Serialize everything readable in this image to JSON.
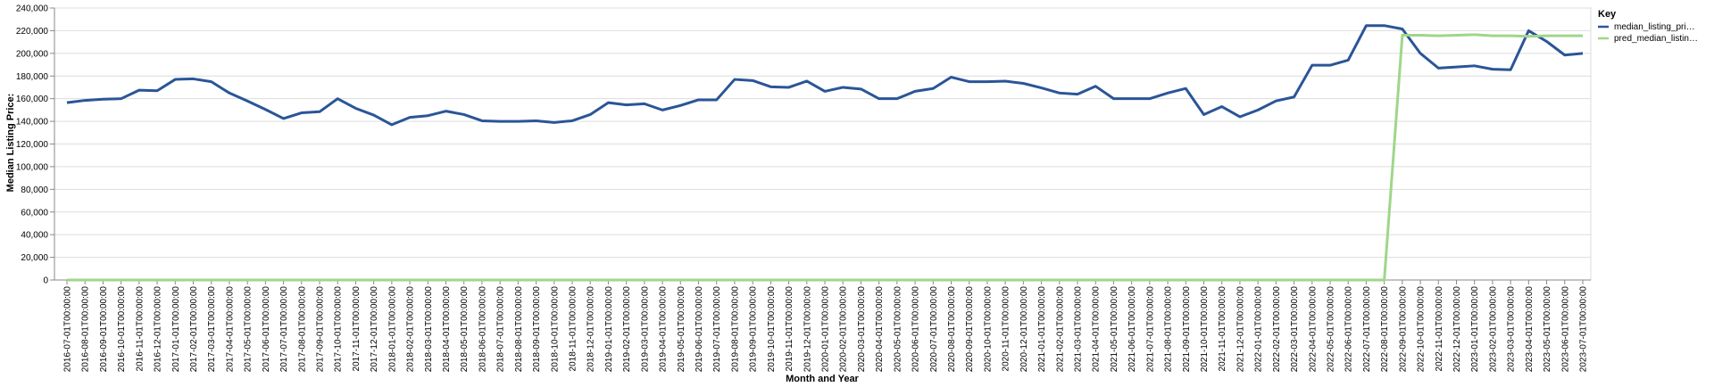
{
  "chart_data": {
    "type": "line",
    "xlabel": "Month and Year",
    "ylabel": "Median Listing Price:",
    "ylim": [
      0,
      240000
    ],
    "yticks": [
      "0",
      "20,000",
      "40,000",
      "60,000",
      "80,000",
      "100,000",
      "120,000",
      "140,000",
      "160,000",
      "180,000",
      "200,000",
      "220,000",
      "240,000"
    ],
    "grid": true,
    "legend": {
      "title": "Key",
      "placement": "right",
      "entries": [
        "median_listing_pri…",
        "pred_median_listin…"
      ]
    },
    "x": [
      "2016-07-01T00:00:00",
      "2016-08-01T00:00:00",
      "2016-09-01T00:00:00",
      "2016-10-01T00:00:00",
      "2016-11-01T00:00:00",
      "2016-12-01T00:00:00",
      "2017-01-01T00:00:00",
      "2017-02-01T00:00:00",
      "2017-03-01T00:00:00",
      "2017-04-01T00:00:00",
      "2017-05-01T00:00:00",
      "2017-06-01T00:00:00",
      "2017-07-01T00:00:00",
      "2017-08-01T00:00:00",
      "2017-09-01T00:00:00",
      "2017-10-01T00:00:00",
      "2017-11-01T00:00:00",
      "2017-12-01T00:00:00",
      "2018-01-01T00:00:00",
      "2018-02-01T00:00:00",
      "2018-03-01T00:00:00",
      "2018-04-01T00:00:00",
      "2018-05-01T00:00:00",
      "2018-06-01T00:00:00",
      "2018-07-01T00:00:00",
      "2018-08-01T00:00:00",
      "2018-09-01T00:00:00",
      "2018-10-01T00:00:00",
      "2018-11-01T00:00:00",
      "2018-12-01T00:00:00",
      "2019-01-01T00:00:00",
      "2019-02-01T00:00:00",
      "2019-03-01T00:00:00",
      "2019-04-01T00:00:00",
      "2019-05-01T00:00:00",
      "2019-06-01T00:00:00",
      "2019-07-01T00:00:00",
      "2019-08-01T00:00:00",
      "2019-09-01T00:00:00",
      "2019-10-01T00:00:00",
      "2019-11-01T00:00:00",
      "2019-12-01T00:00:00",
      "2020-01-01T00:00:00",
      "2020-02-01T00:00:00",
      "2020-03-01T00:00:00",
      "2020-04-01T00:00:00",
      "2020-05-01T00:00:00",
      "2020-06-01T00:00:00",
      "2020-07-01T00:00:00",
      "2020-08-01T00:00:00",
      "2020-09-01T00:00:00",
      "2020-10-01T00:00:00",
      "2020-11-01T00:00:00",
      "2020-12-01T00:00:00",
      "2021-01-01T00:00:00",
      "2021-02-01T00:00:00",
      "2021-03-01T00:00:00",
      "2021-04-01T00:00:00",
      "2021-05-01T00:00:00",
      "2021-06-01T00:00:00",
      "2021-07-01T00:00:00",
      "2021-08-01T00:00:00",
      "2021-09-01T00:00:00",
      "2021-10-01T00:00:00",
      "2021-11-01T00:00:00",
      "2021-12-01T00:00:00",
      "2022-01-01T00:00:00",
      "2022-02-01T00:00:00",
      "2022-03-01T00:00:00",
      "2022-04-01T00:00:00",
      "2022-05-01T00:00:00",
      "2022-06-01T00:00:00",
      "2022-07-01T00:00:00",
      "2022-08-01T00:00:00",
      "2022-09-01T00:00:00",
      "2022-10-01T00:00:00",
      "2022-11-01T00:00:00",
      "2022-12-01T00:00:00",
      "2023-01-01T00:00:00",
      "2023-02-01T00:00:00",
      "2023-03-01T00:00:00",
      "2023-04-01T00:00:00",
      "2023-05-01T00:00:00",
      "2023-06-01T00:00:00",
      "2023-07-01T00:00:00"
    ],
    "series": [
      {
        "name": "median_listing_pri…",
        "color": "#2a5597",
        "values": [
          156500,
          158500,
          159500,
          160000,
          167500,
          167000,
          177000,
          177500,
          175000,
          165000,
          158000,
          150500,
          142500,
          147500,
          148500,
          160000,
          151500,
          145500,
          137000,
          143500,
          145000,
          149000,
          146000,
          140500,
          140000,
          140000,
          140500,
          139000,
          140500,
          146000,
          156500,
          154500,
          155500,
          150000,
          154000,
          159000,
          159000,
          177000,
          176000,
          170500,
          170000,
          175500,
          166500,
          170000,
          168500,
          160000,
          160000,
          166500,
          169000,
          179000,
          175000,
          175000,
          175500,
          173500,
          169500,
          165000,
          164000,
          171000,
          160000,
          160000,
          160000,
          165000,
          169000,
          146000,
          153000,
          144000,
          150000,
          158000,
          161500,
          189500,
          189500,
          194000,
          224500,
          224500,
          221500,
          200000,
          187000,
          188000,
          189000,
          186000,
          185500,
          220000,
          210500,
          198500,
          200000
        ]
      },
      {
        "name": "pred_median_listin…",
        "color": "#9fd68a",
        "values": [
          0,
          0,
          0,
          0,
          0,
          0,
          0,
          0,
          0,
          0,
          0,
          0,
          0,
          0,
          0,
          0,
          0,
          0,
          0,
          0,
          0,
          0,
          0,
          0,
          0,
          0,
          0,
          0,
          0,
          0,
          0,
          0,
          0,
          0,
          0,
          0,
          0,
          0,
          0,
          0,
          0,
          0,
          0,
          0,
          0,
          0,
          0,
          0,
          0,
          0,
          0,
          0,
          0,
          0,
          0,
          0,
          0,
          0,
          0,
          0,
          0,
          0,
          0,
          0,
          0,
          0,
          0,
          0,
          0,
          0,
          0,
          0,
          0,
          0,
          216000,
          216000,
          215500,
          216000,
          216500,
          215500,
          215500,
          215000,
          215500,
          215500,
          215500
        ]
      }
    ]
  }
}
